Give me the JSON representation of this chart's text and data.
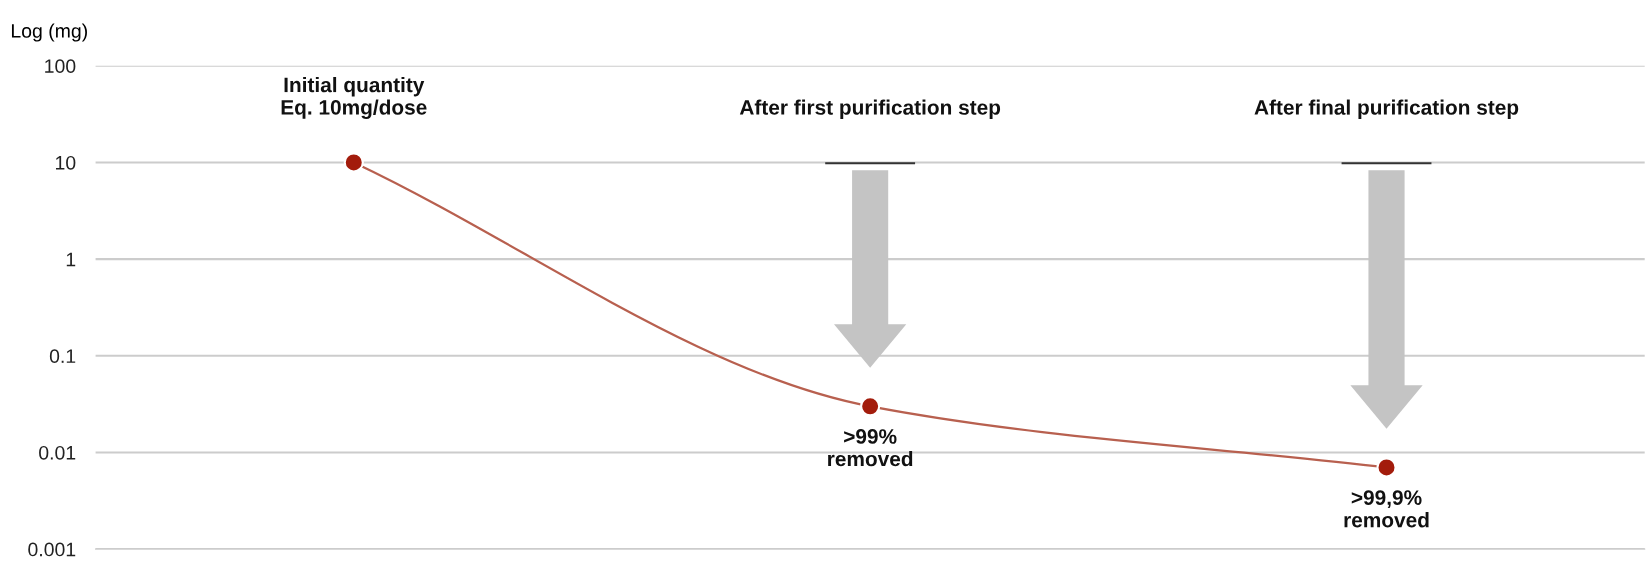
{
  "chart_data": {
    "type": "line",
    "ylabel": "Log (mg)",
    "categories": [
      "Initial quantity\nEq. 10mg/dose",
      "After first purification step",
      "After final purification step"
    ],
    "series": [
      {
        "color": "#a31c0c",
        "values": [
          10,
          0.03,
          0.007
        ]
      }
    ],
    "log": "y",
    "ylim": [
      0.001,
      100
    ],
    "yticks": [
      {
        "value": 0.001,
        "label": "0.001"
      },
      {
        "value": 0.01,
        "label": "0.01"
      },
      {
        "value": 0.1,
        "label": "0.1"
      },
      1,
      10,
      100
    ],
    "grid": "y",
    "marker": "circle",
    "line_style": "solid",
    "annotations": [
      {
        "text": ">99%\nremoved",
        "x": "After first purification step",
        "y": 0.03
      },
      {
        "text": ">99,9%\nremoved",
        "x": "After final purification step",
        "y": 0.007
      }
    ]
  }
}
